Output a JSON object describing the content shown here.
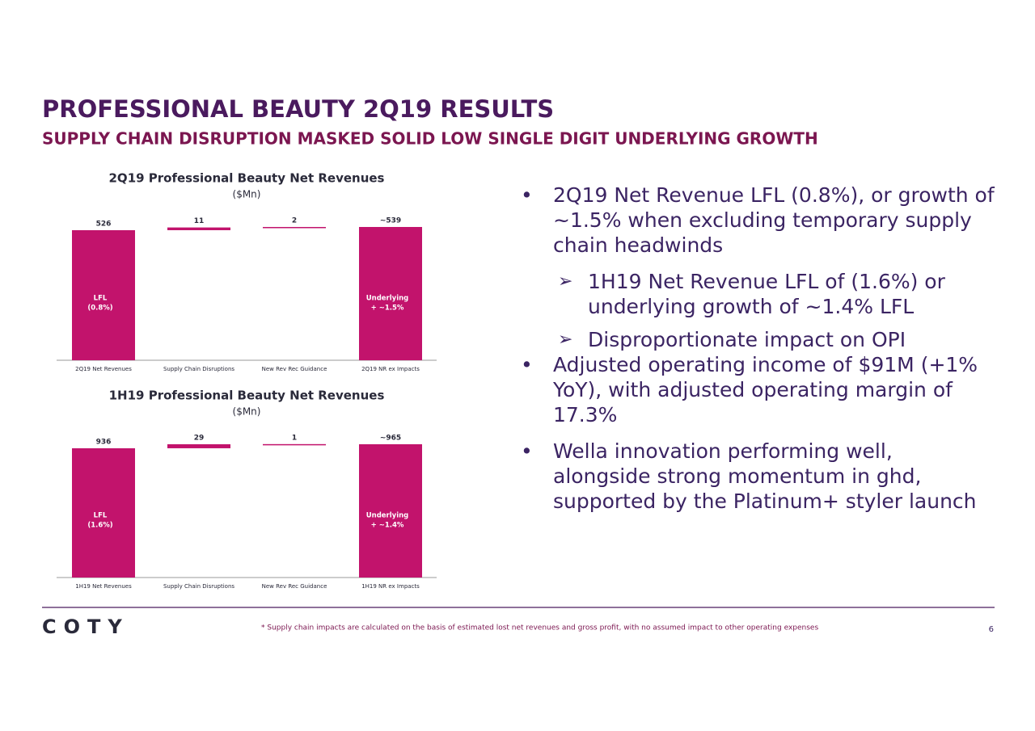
{
  "header": {
    "title": "PROFESSIONAL BEAUTY 2Q19 RESULTS",
    "subtitle": "SUPPLY CHAIN DISRUPTION MASKED SOLID LOW SINGLE DIGIT UNDERLYING GROWTH"
  },
  "chart_data": [
    {
      "type": "waterfall",
      "title": "2Q19 Professional Beauty Net Revenues",
      "subtitle": "($Mn)",
      "categories": [
        "2Q19 Net Revenues",
        "Supply Chain Disruptions",
        "New Rev Rec Guidance",
        "2Q19 NR ex Impacts"
      ],
      "values": [
        526,
        11,
        2,
        539
      ],
      "value_labels": [
        "526",
        "11",
        "2",
        "~539"
      ],
      "color": "#c2136c",
      "bar_notes": [
        [
          "LFL",
          "(0.8%)"
        ],
        null,
        null,
        [
          "Underlying",
          "+ ~1.5%"
        ]
      ]
    },
    {
      "type": "waterfall",
      "title": "1H19 Professional Beauty Net Revenues",
      "subtitle": "($Mn)",
      "categories": [
        "1H19 Net Revenues",
        "Supply Chain Disruptions",
        "New Rev Rec Guidance",
        "1H19 NR ex Impacts"
      ],
      "values": [
        936,
        29,
        1,
        965
      ],
      "value_labels": [
        "936",
        "29",
        "1",
        "~965"
      ],
      "color": "#c2136c",
      "bar_notes": [
        [
          "LFL",
          "(1.6%)"
        ],
        null,
        null,
        [
          "Underlying",
          "+ ~1.4%"
        ]
      ]
    }
  ],
  "bullets": [
    {
      "text": "2Q19 Net Revenue LFL (0.8%), or growth of ~1.5% when excluding temporary supply chain headwinds",
      "sub": [
        "1H19 Net Revenue LFL of (1.6%) or underlying growth of ~1.4% LFL",
        "Disproportionate impact on OPI"
      ]
    },
    {
      "text": "Adjusted operating income of $91M (+1% YoY), with adjusted operating margin of 17.3%",
      "sub": []
    },
    {
      "text": "Wella innovation performing well, alongside strong momentum in ghd, supported by the Platinum+ styler launch",
      "sub": []
    }
  ],
  "footer": {
    "logo": "COTY",
    "note": "* Supply chain impacts are calculated on the basis of estimated lost net revenues and gross profit, with no assumed impact to  other operating expenses",
    "page": 6
  }
}
